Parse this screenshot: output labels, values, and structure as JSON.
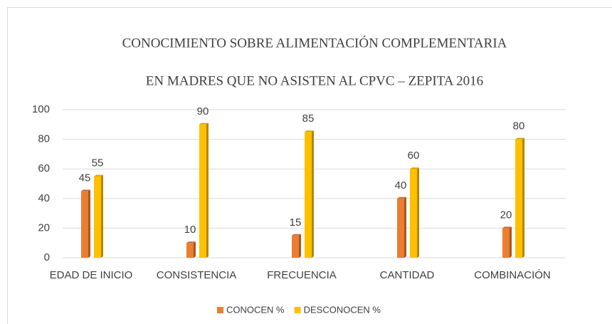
{
  "chart_data": {
    "type": "bar",
    "title": [
      "CONOCIMIENTO SOBRE ALIMENTACIÓN COMPLEMENTARIA",
      "EN MADRES QUE NO ASISTEN AL CPVC – ZEPITA 2016"
    ],
    "categories": [
      "EDAD DE INICIO",
      "CONSISTENCIA",
      "FRECUENCIA",
      "CANTIDAD",
      "COMBINACIÓN"
    ],
    "series": [
      {
        "name": "CONOCEN %",
        "color": "#ed7d31",
        "values": [
          45,
          10,
          15,
          40,
          20
        ]
      },
      {
        "name": "DESCONOCEN %",
        "color": "#ffc000",
        "values": [
          55,
          90,
          85,
          60,
          80
        ]
      }
    ],
    "ylim": [
      0,
      100
    ],
    "yticks": [
      0,
      20,
      40,
      60,
      80,
      100
    ],
    "grid": true,
    "legend": "bottom"
  }
}
